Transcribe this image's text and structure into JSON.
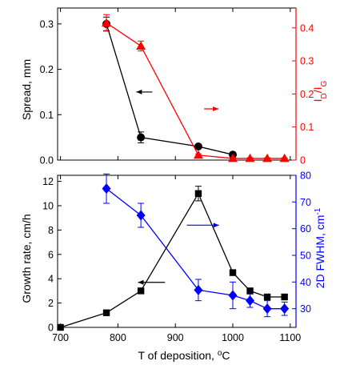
{
  "chart_data": [
    {
      "type": "line",
      "x": [
        780,
        840,
        940,
        1000
      ],
      "xlim": [
        695,
        1110
      ],
      "xticks": [
        700,
        800,
        900,
        1000,
        1100
      ],
      "xlabel": "",
      "grid": false,
      "legend": "none",
      "left_axis": {
        "label": "Spread, mm",
        "ylim": [
          0,
          0.335
        ],
        "ticks": [
          0.0,
          0.1,
          0.2,
          0.3
        ],
        "tick_labels": [
          "0.0",
          "0.1",
          "0.2",
          "0.3"
        ],
        "color": "#000000"
      },
      "right_axis": {
        "label_main": "I",
        "label_sub1": "D",
        "label_sep": "/I",
        "label_sub2": "G",
        "ylim": [
          0,
          0.46
        ],
        "ticks": [
          0,
          0.1,
          0.2,
          0.3,
          0.4
        ],
        "tick_labels": [
          "0",
          "0.1",
          "0.2",
          "0.3",
          "0.4"
        ],
        "color": "#ff0000"
      },
      "series": [
        {
          "axis": "left",
          "color": "#000000",
          "marker": "circle",
          "x": [
            780,
            840,
            940,
            1000
          ],
          "values": [
            0.3,
            0.05,
            0.03,
            0.012
          ],
          "errors": [
            0.015,
            0.012,
            0.004,
            0.003
          ]
        },
        {
          "axis": "right",
          "color": "#ff0000",
          "marker": "triangle",
          "x": [
            780,
            840,
            940,
            1000,
            1030,
            1060,
            1090
          ],
          "values": [
            0.415,
            0.345,
            0.015,
            0.005,
            0.005,
            0.005,
            0.005
          ],
          "errors": [
            0.025,
            0.015,
            0.004,
            0.002,
            0.002,
            0.002,
            0.002
          ]
        }
      ],
      "annotations": [
        {
          "kind": "arrow",
          "color": "#000000",
          "direction": "left",
          "from": [
            860,
            0.15
          ],
          "to": [
            832,
            0.15
          ],
          "axis": "left"
        },
        {
          "kind": "arrow",
          "color": "#ff0000",
          "direction": "right",
          "from": [
            950,
            0.155
          ],
          "to": [
            975,
            0.155
          ],
          "axis": "right"
        }
      ]
    },
    {
      "type": "line",
      "xlim": [
        695,
        1110
      ],
      "xticks": [
        700,
        800,
        900,
        1000,
        1100
      ],
      "xlabel_text": "T of deposition, ",
      "xlabel_sup": "o",
      "xlabel_unit": "C",
      "grid": false,
      "legend": "none",
      "left_axis": {
        "label": "Growth rate, cm/h",
        "ylim": [
          0,
          12.5
        ],
        "ticks": [
          0,
          2,
          4,
          6,
          8,
          10,
          12
        ],
        "tick_labels": [
          "0",
          "2",
          "4",
          "6",
          "8",
          "10",
          "12"
        ],
        "color": "#000000"
      },
      "right_axis": {
        "label_main": "2D FWHM, cm",
        "label_sup": "-1",
        "ylim": [
          23,
          80
        ],
        "ticks": [
          30,
          40,
          50,
          60,
          70,
          80
        ],
        "tick_labels": [
          "30",
          "40",
          "50",
          "60",
          "70",
          "80"
        ],
        "color": "#0000ff"
      },
      "series": [
        {
          "axis": "left",
          "color": "#000000",
          "marker": "square",
          "x": [
            700,
            780,
            840,
            940,
            1000,
            1030,
            1060,
            1090
          ],
          "values": [
            0,
            1.2,
            3.0,
            11.0,
            4.5,
            3.0,
            2.5,
            2.5
          ],
          "errors": [
            0,
            0,
            0,
            0.6,
            0,
            0,
            0,
            0
          ]
        },
        {
          "axis": "right",
          "color": "#0000ff",
          "marker": "diamond",
          "x": [
            780,
            840,
            940,
            1000,
            1030,
            1060,
            1090
          ],
          "values": [
            75,
            65,
            37,
            35,
            33,
            30,
            30
          ],
          "errors": [
            5.5,
            4.5,
            4,
            5,
            2.5,
            3,
            2.5
          ]
        }
      ],
      "annotations": [
        {
          "kind": "arrow",
          "color": "#000000",
          "direction": "left",
          "from": [
            882,
            3.7
          ],
          "to": [
            835,
            3.7
          ],
          "axis": "left"
        },
        {
          "kind": "arrow",
          "color": "#0000ff",
          "direction": "right",
          "from": [
            920,
            8.4
          ],
          "to": [
            976,
            8.4
          ],
          "axis": "left"
        }
      ]
    }
  ]
}
